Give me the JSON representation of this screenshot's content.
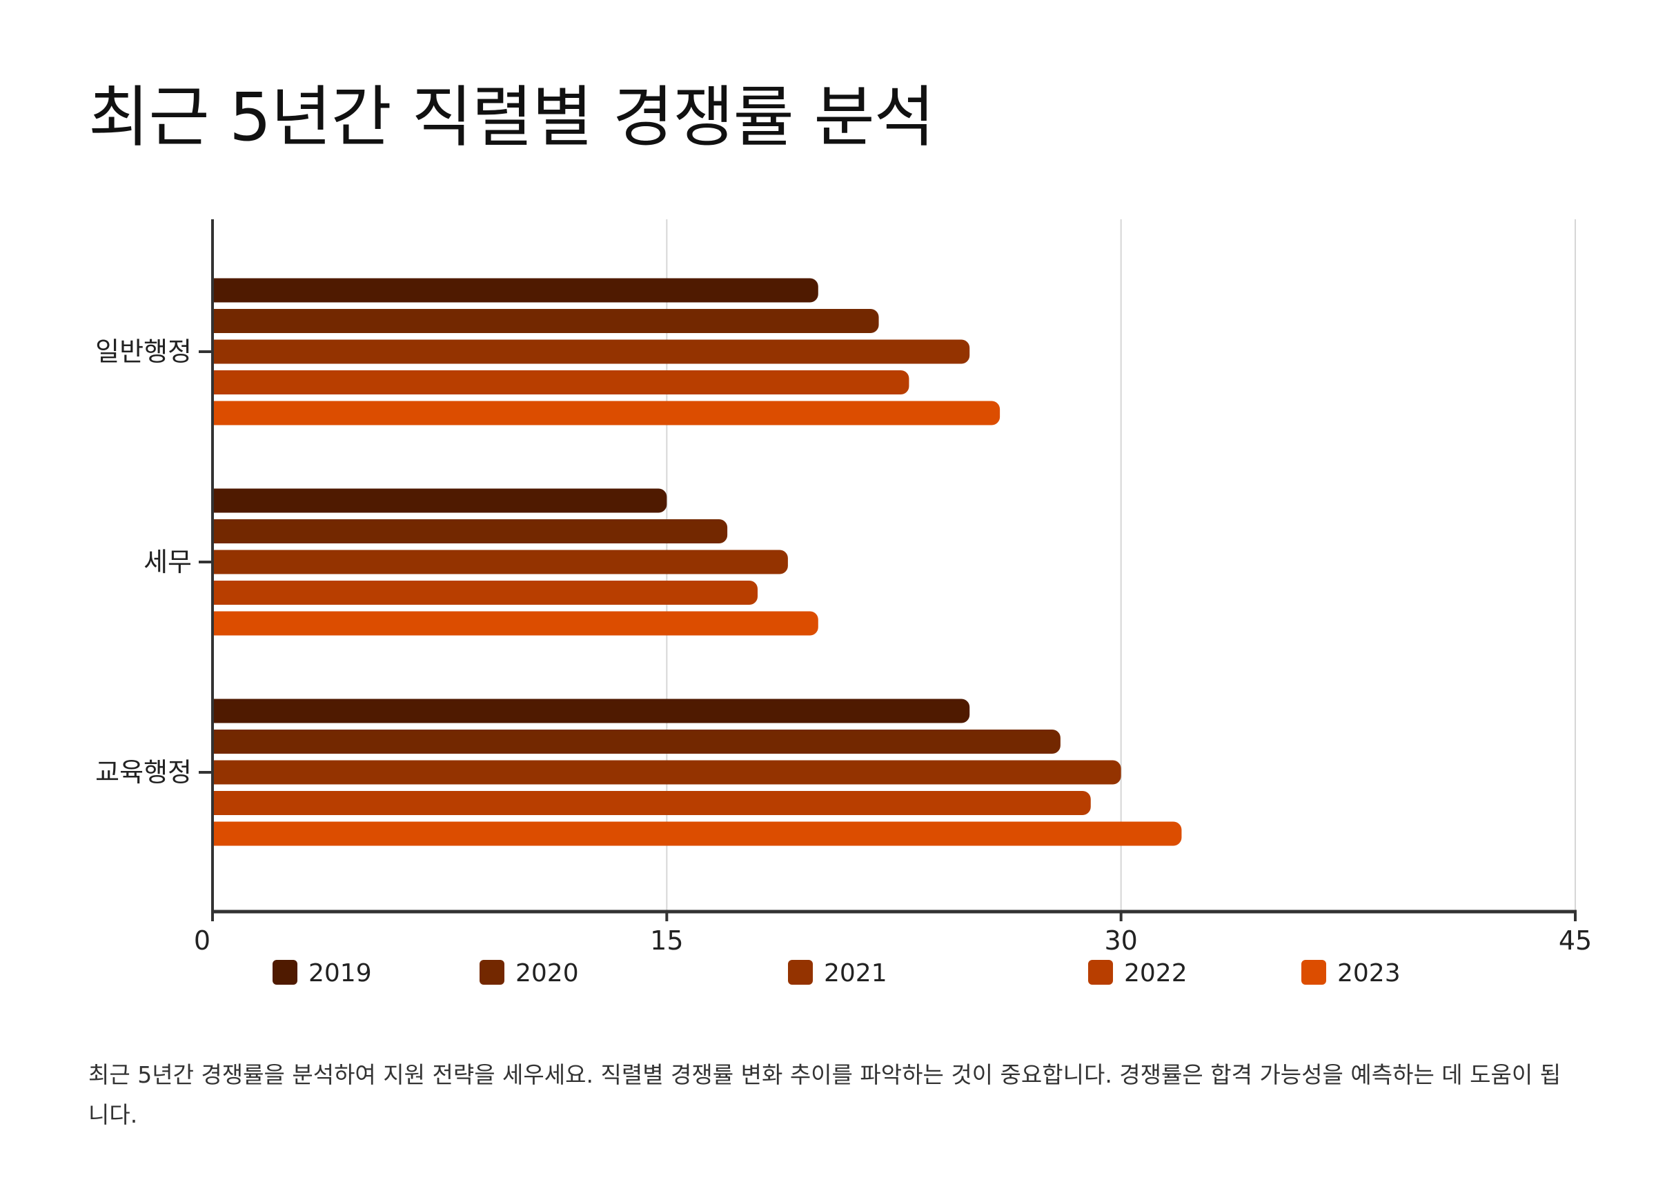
{
  "title": "최근 5년간 직렬별 경쟁률 분석",
  "caption": "최근 5년간 경쟁률을 분석하여 지원 전략을 세우세요. 직렬별 경쟁률 변화 추이를 파악하는 것이 중요합니다. 경쟁률은 합격 가능성을 예측하는 데 도움이 됩니다.",
  "chart_data": {
    "type": "bar",
    "orientation": "horizontal",
    "categories": [
      "일반행정",
      "세무",
      "교육행정"
    ],
    "series": [
      {
        "name": "2019",
        "values": [
          20,
          15,
          25
        ],
        "color": "#4f1a00"
      },
      {
        "name": "2020",
        "values": [
          22,
          17,
          28
        ],
        "color": "#732800"
      },
      {
        "name": "2021",
        "values": [
          25,
          19,
          30
        ],
        "color": "#943300"
      },
      {
        "name": "2022",
        "values": [
          23,
          18,
          29
        ],
        "color": "#b83e00"
      },
      {
        "name": "2023",
        "values": [
          26,
          20,
          32
        ],
        "color": "#dc4d00"
      }
    ],
    "x_ticks": [
      "0",
      "15",
      "30",
      "45"
    ],
    "xlim": [
      0,
      45
    ],
    "grid": true,
    "legend_position": "bottom"
  }
}
